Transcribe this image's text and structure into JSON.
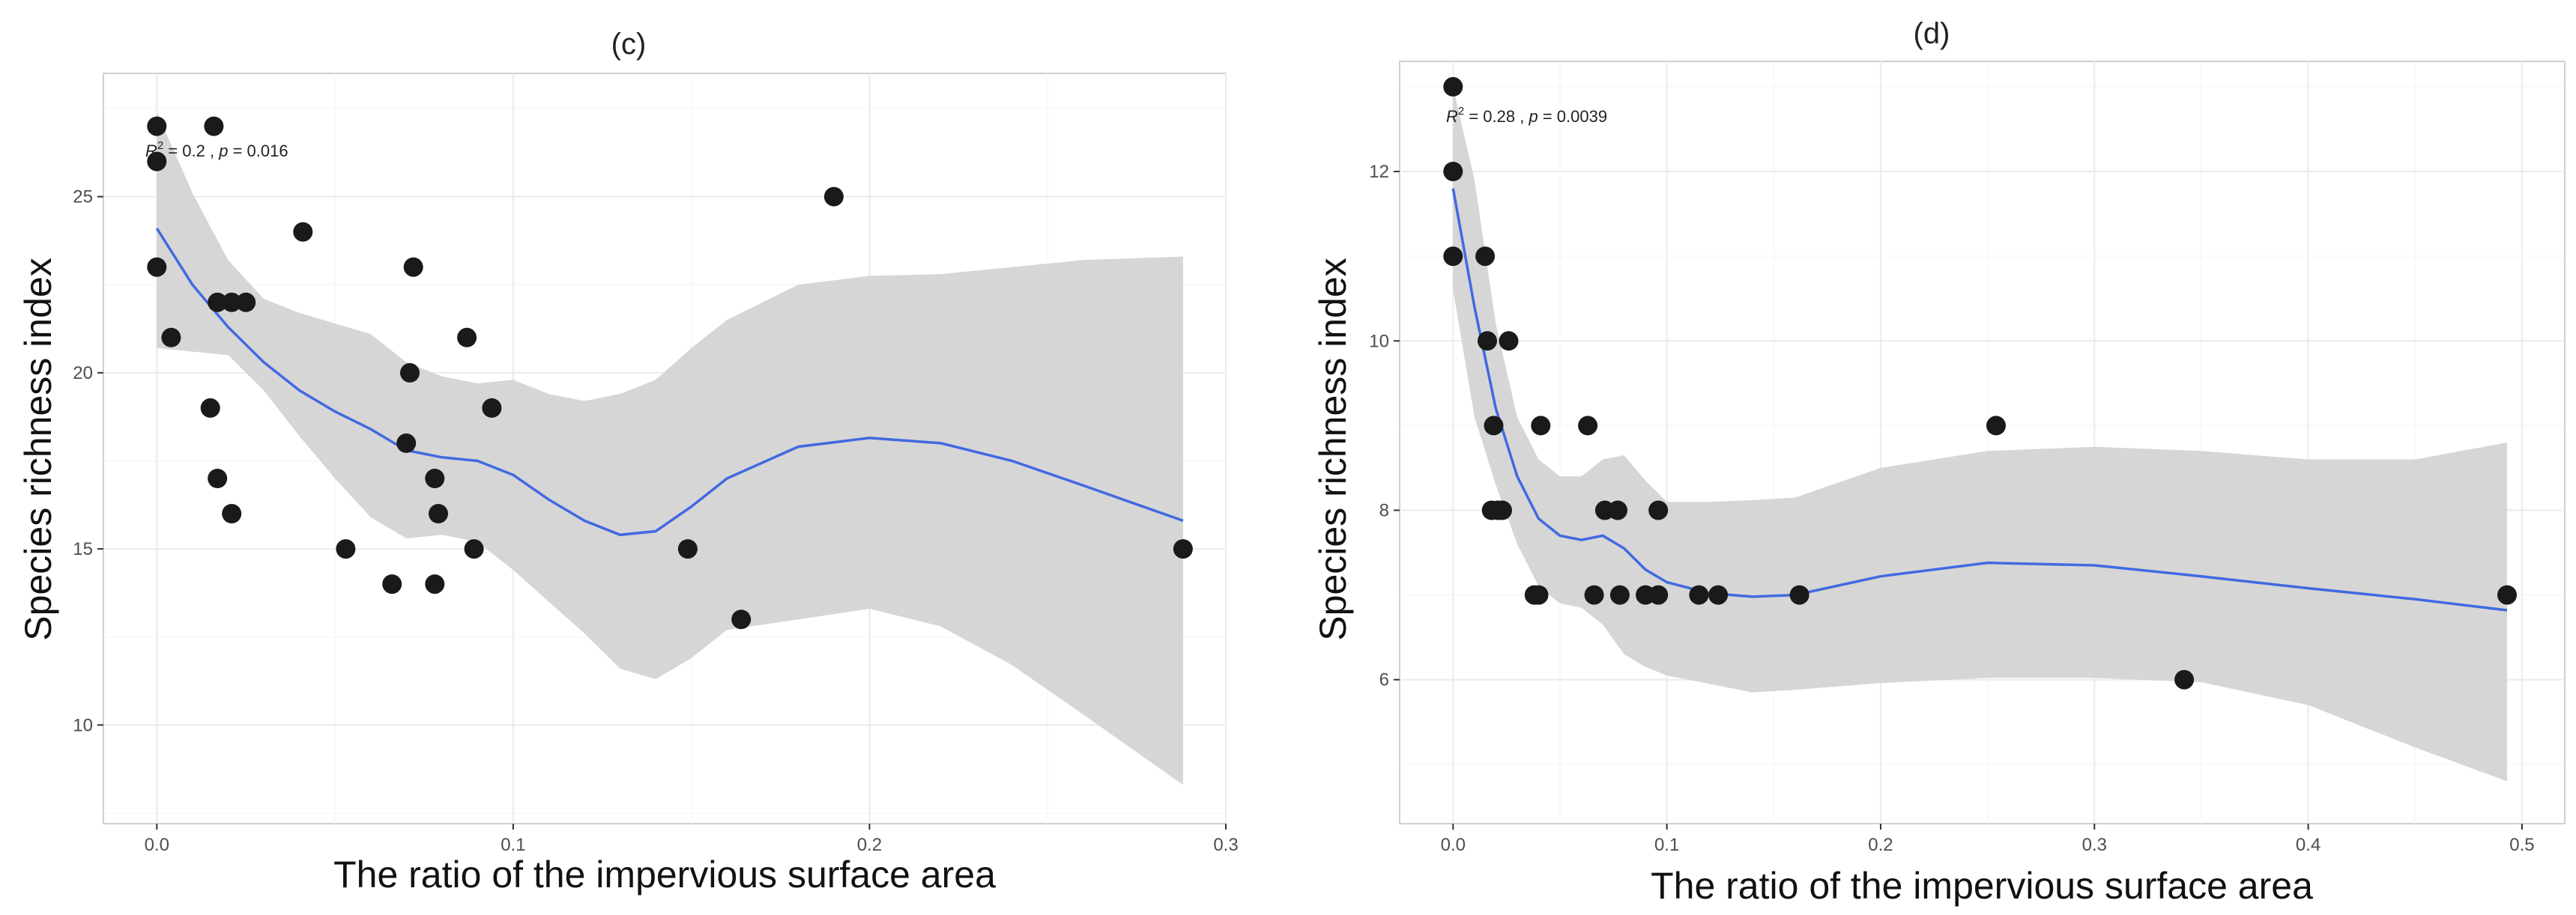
{
  "chart_data": [
    {
      "type": "scatter",
      "title": "(c)",
      "xlabel": "The ratio of the impervious surface area",
      "ylabel": "Species richness index",
      "xlim": [
        -0.015,
        0.3
      ],
      "ylim": [
        7.2,
        28.5
      ],
      "xticks": [
        0.0,
        0.1,
        0.2,
        0.3
      ],
      "xtick_labels": [
        "0.0",
        "0.1",
        "0.2",
        "0.3"
      ],
      "yticks": [
        10,
        15,
        20,
        25
      ],
      "ytick_labels": [
        "10",
        "15",
        "20",
        "25"
      ],
      "annotation": {
        "r2_label": "R",
        "r2_sup": "2",
        "r2_value": " = 0.2 , ",
        "p_label": "p",
        "p_value": " = 0.016",
        "x": 0.0,
        "y": 26.4
      },
      "points": [
        {
          "x": 0.0,
          "y": 27
        },
        {
          "x": 0.0,
          "y": 26
        },
        {
          "x": 0.0,
          "y": 23
        },
        {
          "x": 0.004,
          "y": 21
        },
        {
          "x": 0.016,
          "y": 27
        },
        {
          "x": 0.015,
          "y": 19
        },
        {
          "x": 0.017,
          "y": 17
        },
        {
          "x": 0.017,
          "y": 22
        },
        {
          "x": 0.021,
          "y": 22
        },
        {
          "x": 0.025,
          "y": 22
        },
        {
          "x": 0.021,
          "y": 16
        },
        {
          "x": 0.041,
          "y": 24
        },
        {
          "x": 0.053,
          "y": 15
        },
        {
          "x": 0.066,
          "y": 14
        },
        {
          "x": 0.072,
          "y": 23
        },
        {
          "x": 0.071,
          "y": 20
        },
        {
          "x": 0.07,
          "y": 18
        },
        {
          "x": 0.078,
          "y": 17
        },
        {
          "x": 0.079,
          "y": 16
        },
        {
          "x": 0.078,
          "y": 14
        },
        {
          "x": 0.087,
          "y": 21
        },
        {
          "x": 0.089,
          "y": 15
        },
        {
          "x": 0.094,
          "y": 19
        },
        {
          "x": 0.149,
          "y": 15
        },
        {
          "x": 0.164,
          "y": 13
        },
        {
          "x": 0.19,
          "y": 25
        },
        {
          "x": 0.288,
          "y": 15
        }
      ],
      "smooth_x": [
        0.0,
        0.01,
        0.02,
        0.03,
        0.04,
        0.05,
        0.06,
        0.07,
        0.08,
        0.09,
        0.1,
        0.11,
        0.12,
        0.13,
        0.14,
        0.15,
        0.16,
        0.18,
        0.2,
        0.22,
        0.24,
        0.26,
        0.288
      ],
      "smooth_y": [
        24.1,
        22.5,
        21.3,
        20.3,
        19.5,
        18.9,
        18.4,
        17.8,
        17.6,
        17.5,
        17.1,
        16.4,
        15.8,
        15.4,
        15.5,
        16.2,
        17.0,
        17.9,
        18.15,
        18.0,
        17.5,
        16.8,
        15.8
      ],
      "band_lower": [
        20.7,
        20.6,
        20.5,
        19.5,
        18.2,
        17.0,
        15.9,
        15.3,
        15.4,
        15.2,
        14.4,
        13.5,
        12.6,
        11.6,
        11.3,
        11.9,
        12.7,
        13.0,
        13.3,
        12.8,
        11.7,
        10.3,
        8.3
      ],
      "band_upper": [
        27.4,
        25.1,
        23.2,
        22.1,
        21.7,
        21.4,
        21.1,
        20.3,
        19.9,
        19.7,
        19.8,
        19.4,
        19.2,
        19.4,
        19.8,
        20.7,
        21.5,
        22.5,
        22.75,
        22.8,
        23.0,
        23.2,
        23.3
      ],
      "colors": {
        "point": "#1a1a1a",
        "smooth": "#4169e1",
        "band": "#d4d4d4"
      }
    },
    {
      "type": "scatter",
      "title": "(d)",
      "xlabel": "The ratio of the impervious surface area",
      "ylabel": "Species richness index",
      "xlim": [
        -0.025,
        0.52
      ],
      "ylim": [
        4.3,
        13.3
      ],
      "xticks": [
        0.0,
        0.1,
        0.2,
        0.3,
        0.4,
        0.5
      ],
      "xtick_labels": [
        "0.0",
        "0.1",
        "0.2",
        "0.3",
        "0.4",
        "0.5"
      ],
      "yticks": [
        6,
        8,
        10,
        12
      ],
      "ytick_labels": [
        "6",
        "8",
        "10",
        "12"
      ],
      "annotation": {
        "r2_label": "R",
        "r2_sup": "2",
        "r2_value": " = 0.28 , ",
        "p_label": "p",
        "p_value": " = 0.0039",
        "x": 0.0,
        "y": 12.55
      },
      "points": [
        {
          "x": 0.0,
          "y": 13
        },
        {
          "x": 0.0,
          "y": 12
        },
        {
          "x": 0.0,
          "y": 11
        },
        {
          "x": 0.015,
          "y": 11
        },
        {
          "x": 0.016,
          "y": 10
        },
        {
          "x": 0.026,
          "y": 10
        },
        {
          "x": 0.019,
          "y": 9
        },
        {
          "x": 0.018,
          "y": 8
        },
        {
          "x": 0.021,
          "y": 8
        },
        {
          "x": 0.023,
          "y": 8
        },
        {
          "x": 0.038,
          "y": 7
        },
        {
          "x": 0.04,
          "y": 7
        },
        {
          "x": 0.041,
          "y": 9
        },
        {
          "x": 0.063,
          "y": 9
        },
        {
          "x": 0.066,
          "y": 7
        },
        {
          "x": 0.071,
          "y": 8
        },
        {
          "x": 0.077,
          "y": 8
        },
        {
          "x": 0.078,
          "y": 7
        },
        {
          "x": 0.09,
          "y": 7
        },
        {
          "x": 0.096,
          "y": 7
        },
        {
          "x": 0.096,
          "y": 8
        },
        {
          "x": 0.115,
          "y": 7
        },
        {
          "x": 0.124,
          "y": 7
        },
        {
          "x": 0.162,
          "y": 7
        },
        {
          "x": 0.254,
          "y": 9
        },
        {
          "x": 0.342,
          "y": 6
        },
        {
          "x": 0.493,
          "y": 7
        }
      ],
      "smooth_x": [
        0.0,
        0.01,
        0.02,
        0.03,
        0.04,
        0.05,
        0.06,
        0.07,
        0.08,
        0.09,
        0.1,
        0.12,
        0.14,
        0.16,
        0.2,
        0.25,
        0.3,
        0.35,
        0.4,
        0.45,
        0.493
      ],
      "smooth_y": [
        11.8,
        10.4,
        9.2,
        8.4,
        7.9,
        7.7,
        7.65,
        7.7,
        7.55,
        7.3,
        7.15,
        7.02,
        6.98,
        7.0,
        7.22,
        7.38,
        7.35,
        7.22,
        7.08,
        6.95,
        6.82
      ],
      "band_lower": [
        10.6,
        9.1,
        8.3,
        7.6,
        7.1,
        6.9,
        6.85,
        6.65,
        6.3,
        6.15,
        6.05,
        5.95,
        5.85,
        5.88,
        5.96,
        6.02,
        6.02,
        5.97,
        5.7,
        5.2,
        4.8
      ],
      "band_upper": [
        13.0,
        11.9,
        10.2,
        9.1,
        8.6,
        8.4,
        8.4,
        8.6,
        8.65,
        8.35,
        8.1,
        8.1,
        8.12,
        8.15,
        8.5,
        8.7,
        8.75,
        8.7,
        8.6,
        8.6,
        8.8
      ],
      "colors": {
        "point": "#1a1a1a",
        "smooth": "#4169e1",
        "band": "#d4d4d4"
      }
    }
  ]
}
